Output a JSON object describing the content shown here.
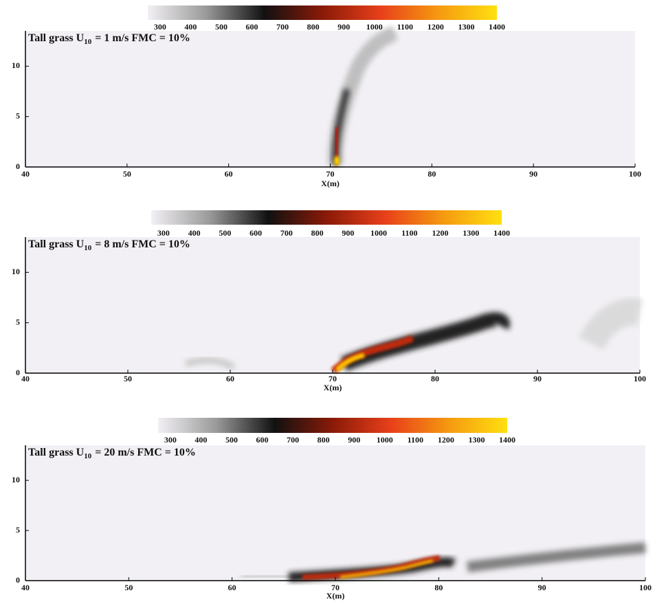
{
  "chart_data": [
    {
      "type": "contour",
      "title_main": "Tall grass U",
      "title_sub": "10",
      "title_rest": "= 1 m/s FMC = 10%",
      "xlabel": "X(m)",
      "xlim": [
        40,
        100
      ],
      "ylim": [
        0,
        13.5
      ],
      "xticks": [
        40,
        50,
        60,
        70,
        80,
        90,
        100
      ],
      "yticks": [
        0,
        5,
        10
      ],
      "clim": [
        260,
        1400
      ],
      "cticks": [
        300,
        400,
        500,
        600,
        700,
        800,
        900,
        1000,
        1100,
        1200,
        1300,
        1400
      ],
      "colormap": [
        "#f2f0f4",
        "#9a9a9a",
        "#111111",
        "#8a1a08",
        "#e8401a",
        "#f59a10",
        "#ffe010"
      ]
    },
    {
      "type": "contour",
      "title_main": "Tall grass U",
      "title_sub": "10",
      "title_rest": "= 8 m/s FMC = 10%",
      "xlabel": "X(m)",
      "xlim": [
        40,
        100
      ],
      "ylim": [
        0,
        13.5
      ],
      "xticks": [
        40,
        50,
        60,
        70,
        80,
        90,
        100
      ],
      "yticks": [
        0,
        5,
        10
      ],
      "clim": [
        260,
        1400
      ],
      "cticks": [
        300,
        400,
        500,
        600,
        700,
        800,
        900,
        1000,
        1100,
        1200,
        1300,
        1400
      ],
      "colormap": [
        "#f2f0f4",
        "#9a9a9a",
        "#111111",
        "#8a1a08",
        "#e8401a",
        "#f59a10",
        "#ffe010"
      ]
    },
    {
      "type": "contour",
      "title_main": "Tall grass U",
      "title_sub": "10",
      "title_rest": "= 20 m/s FMC = 10%",
      "xlabel": "X(m)",
      "xlim": [
        40,
        100
      ],
      "ylim": [
        0,
        13.5
      ],
      "xticks": [
        40,
        50,
        60,
        70,
        80,
        90,
        100
      ],
      "yticks": [
        0,
        5,
        10
      ],
      "clim": [
        260,
        1400
      ],
      "cticks": [
        300,
        400,
        500,
        600,
        700,
        800,
        900,
        1000,
        1100,
        1200,
        1300,
        1400
      ],
      "colormap": [
        "#f2f0f4",
        "#9a9a9a",
        "#111111",
        "#8a1a08",
        "#e8401a",
        "#f59a10",
        "#ffe010"
      ]
    }
  ]
}
